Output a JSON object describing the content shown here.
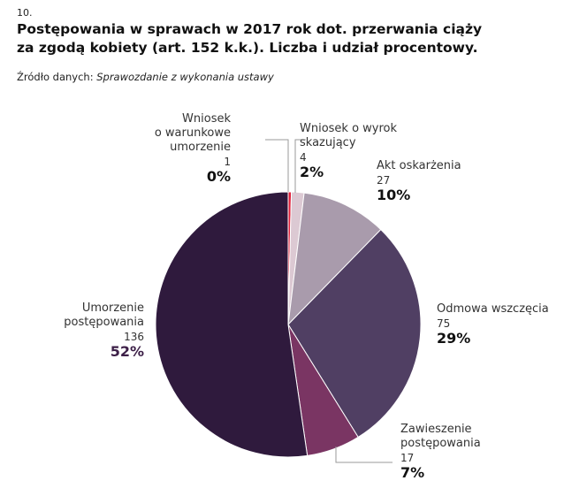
{
  "header": {
    "figure_number": "10.",
    "title_line1": "Postępowania w sprawach w 2017 rok dot. przerwania ciąży",
    "title_line2": "za zgodą kobiety (art. 152 k.k.). Liczba i udział procentowy.",
    "source_label": "Źródło danych:",
    "source_value": "Sprawozdanie z wykonania ustawy"
  },
  "chart_data": {
    "type": "pie",
    "title": "Postępowania w sprawach w 2017 rok dot. przerwania ciąży za zgodą kobiety (art. 152 k.k.). Liczba i udział procentowy.",
    "slices": [
      {
        "key": "warunkowe",
        "label_lines": [
          "Wniosek",
          "o warunkowe",
          "umorzenie"
        ],
        "value": 1,
        "percent": "0%",
        "color": "#e0203a"
      },
      {
        "key": "wyrok",
        "label_lines": [
          "Wniosek o wyrok",
          "skazujący"
        ],
        "value": 4,
        "percent": "2%",
        "color": "#dcc9d3"
      },
      {
        "key": "akt",
        "label_lines": [
          "Akt oskarżenia"
        ],
        "value": 27,
        "percent": "10%",
        "color": "#a99bac"
      },
      {
        "key": "odmowa",
        "label_lines": [
          "Odmowa wszczęcia"
        ],
        "value": 75,
        "percent": "29%",
        "color": "#503f63"
      },
      {
        "key": "zawieszenie",
        "label_lines": [
          "Zawieszenie",
          "postępowania"
        ],
        "value": 17,
        "percent": "7%",
        "color": "#7a3563"
      },
      {
        "key": "umorzenie",
        "label_lines": [
          "Umorzenie",
          "postępowania"
        ],
        "value": 136,
        "percent": "52%",
        "color": "#2f1a3d"
      }
    ]
  }
}
